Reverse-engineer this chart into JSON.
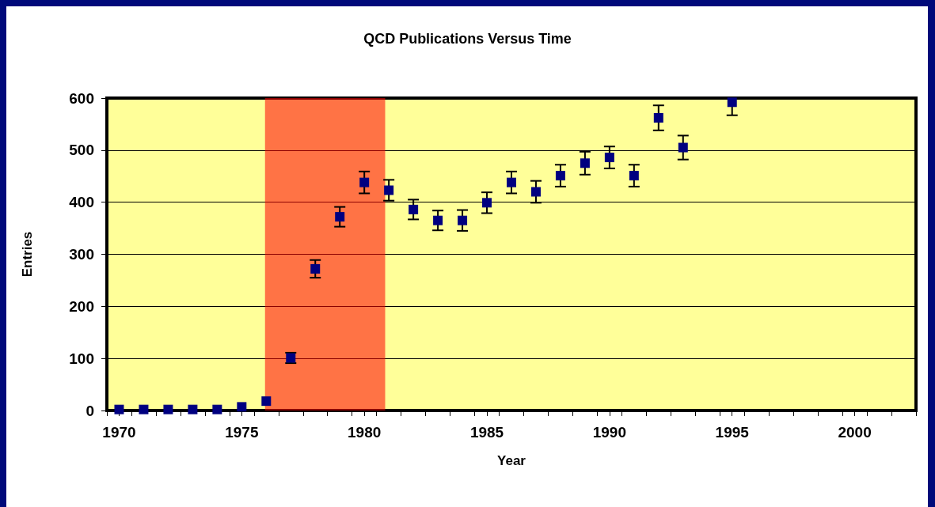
{
  "chart_data": {
    "type": "scatter",
    "title": "QCD Publications Versus Time",
    "xlabel": "Year",
    "ylabel": "Entries",
    "x": [
      1970,
      1971,
      1972,
      1973,
      1974,
      1975,
      1976,
      1977,
      1978,
      1979,
      1980,
      1981,
      1982,
      1983,
      1984,
      1985,
      1986,
      1987,
      1988,
      1989,
      1990,
      1991,
      1992,
      1993,
      1995
    ],
    "series": [
      {
        "color": "#000080",
        "values": [
          2,
          2,
          2,
          2,
          2,
          7,
          18,
          101,
          272,
          372,
          438,
          423,
          386,
          365,
          365,
          399,
          438,
          420,
          451,
          475,
          486,
          451,
          562,
          505,
          592
        ],
        "errors": [
          null,
          null,
          null,
          null,
          null,
          null,
          null,
          10,
          17,
          19,
          21,
          20,
          19,
          19,
          20,
          20,
          21,
          21,
          21,
          22,
          21,
          21,
          24,
          23,
          [
            567,
            600
          ]
        ]
      }
    ],
    "marker": "square",
    "xlim": [
      1969.5,
      2002.5
    ],
    "xticks": [
      1970,
      1975,
      1980,
      1985,
      1990,
      1995,
      2000,
      {
        "value": 1969.5,
        "label": null
      },
      {
        "value": 1970.5,
        "label": null
      },
      {
        "value": 1971.5,
        "label": null
      },
      {
        "value": 1972.5,
        "label": null
      },
      {
        "value": 1973.5,
        "label": null
      },
      {
        "value": 1974.5,
        "label": null
      },
      {
        "value": 1975.5,
        "label": null
      },
      {
        "value": 1976.5,
        "label": null
      },
      {
        "value": 1977.5,
        "label": null
      },
      {
        "value": 1978.5,
        "label": null
      },
      {
        "value": 1979.5,
        "label": null
      },
      {
        "value": 1980.5,
        "label": null
      },
      {
        "value": 1981.5,
        "label": null
      },
      {
        "value": 1982.5,
        "label": null
      },
      {
        "value": 1983.5,
        "label": null
      },
      {
        "value": 1984.5,
        "label": null
      },
      {
        "value": 1985.5,
        "label": null
      },
      {
        "value": 1986.5,
        "label": null
      },
      {
        "value": 1987.5,
        "label": null
      },
      {
        "value": 1988.5,
        "label": null
      },
      {
        "value": 1989.5,
        "label": null
      },
      {
        "value": 1990.5,
        "label": null
      },
      {
        "value": 1991.5,
        "label": null
      },
      {
        "value": 1992.5,
        "label": null
      },
      {
        "value": 1993.5,
        "label": null
      },
      {
        "value": 1994.5,
        "label": null
      },
      {
        "value": 1995.5,
        "label": null
      },
      {
        "value": 1996.5,
        "label": null
      },
      {
        "value": 1997.5,
        "label": null
      },
      {
        "value": 1998.5,
        "label": null
      },
      {
        "value": 1999.5,
        "label": null
      },
      {
        "value": 2000.5,
        "label": null
      },
      {
        "value": 2001.5,
        "label": null
      },
      {
        "value": 2002.5,
        "label": null
      }
    ],
    "ylim": [
      0,
      600
    ],
    "yticks": [
      0,
      100,
      200,
      300,
      400,
      500,
      600
    ],
    "grid": "y",
    "bands": [
      {
        "axis": "x",
        "from": 1975.95,
        "to": 1980.85,
        "color": "#ff0000"
      }
    ]
  }
}
